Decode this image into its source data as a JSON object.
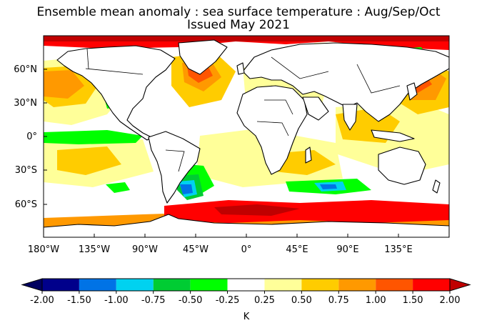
{
  "title": "Ensemble mean anomaly : sea surface temperature : Aug/Sep/Oct",
  "subtitle": "Issued May 2021",
  "lat_labels": [
    "60°N",
    "30°N",
    "0°",
    "30°S",
    "60°S"
  ],
  "lon_labels": [
    "180°W",
    "135°W",
    "90°W",
    "45°W",
    "0°",
    "45°E",
    "90°E",
    "135°E"
  ],
  "colorbar": {
    "unit": "K",
    "ticks": [
      "-2.00",
      "-1.50",
      "-1.00",
      "-0.75",
      "-0.50",
      "-0.25",
      "0.25",
      "0.50",
      "0.75",
      "1.00",
      "1.50",
      "2.00"
    ],
    "colors": [
      "#00008b",
      "#0073e6",
      "#00d2f0",
      "#00cc33",
      "#00ff00",
      "#ffffff",
      "#ffff99",
      "#ffcc00",
      "#ff9900",
      "#ff5500",
      "#ff0000"
    ],
    "under_color": "#000060",
    "over_color": "#c00000"
  },
  "chart_data": {
    "type": "heatmap",
    "title": "Ensemble mean anomaly : sea surface temperature : Aug/Sep/Oct",
    "subtitle": "Issued May 2021",
    "variable": "sea surface temperature anomaly",
    "unit": "K",
    "lon_range": [
      -180,
      180
    ],
    "lat_range": [
      -90,
      90
    ],
    "levels": [
      -2.0,
      -1.5,
      -1.0,
      -0.75,
      -0.5,
      -0.25,
      0.25,
      0.5,
      0.75,
      1.0,
      1.5,
      2.0
    ],
    "regions": [
      {
        "lon": [
          -180,
          180
        ],
        "lat": [
          70,
          90
        ],
        "value": 2.2
      },
      {
        "lon": [
          -180,
          180
        ],
        "lat": [
          -72,
          -55
        ],
        "value": 1.6
      },
      {
        "lon": [
          -175,
          -135
        ],
        "lat": [
          20,
          55
        ],
        "value": 0.8
      },
      {
        "lon": [
          -35,
          -5
        ],
        "lat": [
          45,
          65
        ],
        "value": 1.0
      },
      {
        "lon": [
          120,
          175
        ],
        "lat": [
          20,
          50
        ],
        "value": 1.1
      },
      {
        "lon": [
          90,
          160
        ],
        "lat": [
          -15,
          10
        ],
        "value": 0.9
      },
      {
        "lon": [
          -180,
          -100
        ],
        "lat": [
          -45,
          -15
        ],
        "value": 0.6
      },
      {
        "lon": [
          -180,
          -110
        ],
        "lat": [
          -8,
          3
        ],
        "value": -0.4
      },
      {
        "lon": [
          -58,
          -40
        ],
        "lat": [
          -60,
          -50
        ],
        "value": -1.6
      },
      {
        "lon": [
          60,
          90
        ],
        "lat": [
          -50,
          -43
        ],
        "value": -1.1
      },
      {
        "lon": [
          0,
          100
        ],
        "lat": [
          -40,
          -20
        ],
        "value": 0.4
      },
      {
        "lon": [
          -20,
          10
        ],
        "lat": [
          -10,
          5
        ],
        "value": 0.3
      }
    ]
  }
}
